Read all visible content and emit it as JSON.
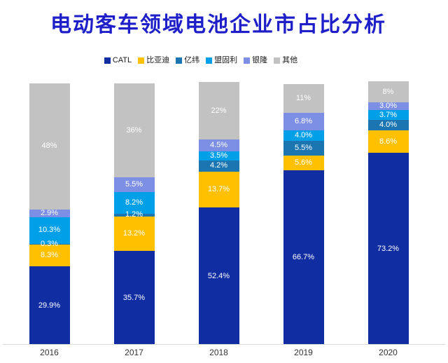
{
  "title": {
    "text": "电动客车领域电池企业市占比分析",
    "color": "#1e1fc8"
  },
  "chart_data": {
    "type": "bar",
    "stacked": true,
    "unit": "percent",
    "title": "电动客车领域电池企业市占比分析",
    "grid": false,
    "legend_position": "top",
    "value_label_color": "#ffffff",
    "baseline_color": "#dbdbdb",
    "ylim": [
      0,
      100
    ],
    "categories": [
      "2016",
      "2017",
      "2018",
      "2019",
      "2020"
    ],
    "series": [
      {
        "name": "CATL",
        "color": "#112da2",
        "values": [
          29.9,
          35.7,
          52.4,
          66.7,
          73.2
        ],
        "labels": [
          "29.9%",
          "35.7%",
          "52.4%",
          "66.7%",
          "73.2%"
        ]
      },
      {
        "name": "比亚迪",
        "color": "#ffc000",
        "values": [
          8.3,
          13.2,
          13.7,
          5.6,
          8.6
        ],
        "labels": [
          "8.3%",
          "13.2%",
          "13.7%",
          "5.6%",
          "8.6%"
        ]
      },
      {
        "name": "亿纬",
        "color": "#1b75b0",
        "values": [
          0.3,
          1.2,
          4.2,
          5.5,
          4.0
        ],
        "labels": [
          "0.3%",
          "1.2%",
          "4.2%",
          "5.5%",
          "4.0%"
        ]
      },
      {
        "name": "盟固利",
        "color": "#00a0e9",
        "values": [
          10.3,
          8.2,
          3.5,
          4.0,
          3.7
        ],
        "labels": [
          "10.3%",
          "8.2%",
          "3.5%",
          "4.0%",
          "3.7%"
        ]
      },
      {
        "name": "银隆",
        "color": "#7d8fe4",
        "values": [
          2.9,
          5.5,
          4.5,
          6.8,
          3.0
        ],
        "labels": [
          "2.9%",
          "5.5%",
          "4.5%",
          "6.8%",
          "3.0%"
        ]
      },
      {
        "name": "其他",
        "color": "#c2c2c2",
        "values": [
          48,
          36,
          22,
          11,
          8
        ],
        "labels": [
          "48%",
          "36%",
          "22%",
          "11%",
          "8%"
        ]
      }
    ]
  }
}
